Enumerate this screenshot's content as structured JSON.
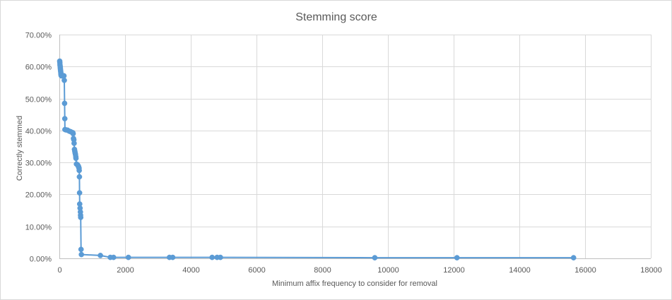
{
  "chart_data": {
    "type": "scatter",
    "title": "Stemming score",
    "xlabel": "Minimum  affix frequency  to consider  for removal",
    "ylabel": "Correctly stemmed",
    "xlim": [
      0,
      18000
    ],
    "ylim": [
      0,
      0.7
    ],
    "x_ticks": [
      0,
      2000,
      4000,
      6000,
      8000,
      10000,
      12000,
      14000,
      16000,
      18000
    ],
    "x_tick_labels": [
      "0",
      "2000",
      "4000",
      "6000",
      "8000",
      "10000",
      "12000",
      "14000",
      "16000",
      "18000"
    ],
    "y_ticks": [
      0,
      0.1,
      0.2,
      0.3,
      0.4,
      0.5,
      0.6,
      0.7
    ],
    "y_tick_labels": [
      "0.00%",
      "10.00%",
      "20.00%",
      "30.00%",
      "40.00%",
      "50.00%",
      "60.00%",
      "70.00%"
    ],
    "grid": true,
    "legend": "none",
    "series_color": "#5b9bd5",
    "series": [
      {
        "points": [
          [
            10,
            0.617
          ],
          [
            15,
            0.612
          ],
          [
            20,
            0.605
          ],
          [
            25,
            0.6
          ],
          [
            30,
            0.595
          ],
          [
            35,
            0.59
          ],
          [
            40,
            0.585
          ],
          [
            45,
            0.58
          ],
          [
            50,
            0.575
          ],
          [
            55,
            0.572
          ],
          [
            60,
            0.571
          ],
          [
            80,
            0.571
          ],
          [
            100,
            0.571
          ],
          [
            120,
            0.571
          ],
          [
            140,
            0.571
          ],
          [
            150,
            0.557
          ],
          [
            160,
            0.485
          ],
          [
            165,
            0.437
          ],
          [
            170,
            0.403
          ],
          [
            200,
            0.402
          ],
          [
            250,
            0.401
          ],
          [
            300,
            0.398
          ],
          [
            350,
            0.396
          ],
          [
            410,
            0.393
          ],
          [
            420,
            0.39
          ],
          [
            430,
            0.375
          ],
          [
            440,
            0.371
          ],
          [
            450,
            0.36
          ],
          [
            460,
            0.341
          ],
          [
            470,
            0.335
          ],
          [
            480,
            0.33
          ],
          [
            490,
            0.325
          ],
          [
            500,
            0.318
          ],
          [
            505,
            0.313
          ],
          [
            520,
            0.295
          ],
          [
            550,
            0.293
          ],
          [
            570,
            0.29
          ],
          [
            580,
            0.288
          ],
          [
            590,
            0.285
          ],
          [
            600,
            0.282
          ],
          [
            605,
            0.275
          ],
          [
            610,
            0.255
          ],
          [
            615,
            0.205
          ],
          [
            620,
            0.17
          ],
          [
            630,
            0.157
          ],
          [
            640,
            0.145
          ],
          [
            645,
            0.135
          ],
          [
            650,
            0.128
          ],
          [
            660,
            0.028
          ],
          [
            670,
            0.012
          ],
          [
            1250,
            0.009
          ],
          [
            1550,
            0.003
          ],
          [
            1650,
            0.003
          ],
          [
            2100,
            0.003
          ],
          [
            3350,
            0.003
          ],
          [
            3450,
            0.003
          ],
          [
            4650,
            0.003
          ],
          [
            4800,
            0.003
          ],
          [
            4900,
            0.003
          ],
          [
            9600,
            0.002
          ],
          [
            12100,
            0.002
          ],
          [
            15650,
            0.002
          ]
        ]
      }
    ]
  }
}
